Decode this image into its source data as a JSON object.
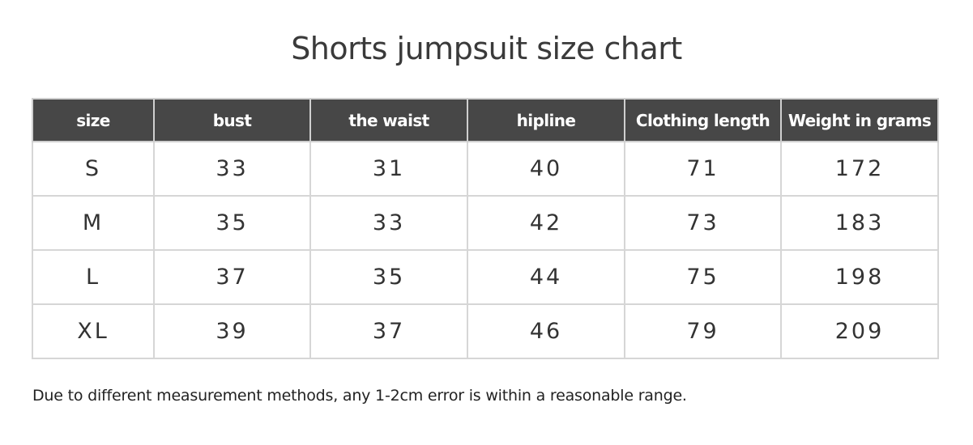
{
  "title": "Shorts jumpsuit size chart",
  "table": {
    "headers": [
      "size",
      "bust",
      "the waist",
      "hipline",
      "Clothing length",
      "Weight in grams"
    ],
    "rows": [
      [
        "S",
        "33",
        "31",
        "40",
        "71",
        "172"
      ],
      [
        "M",
        "35",
        "33",
        "42",
        "73",
        "183"
      ],
      [
        "L",
        "37",
        "35",
        "44",
        "75",
        "198"
      ],
      [
        "XL",
        "39",
        "37",
        "46",
        "79",
        "209"
      ]
    ]
  },
  "note": "Due to different measurement methods, any 1-2cm error is within a reasonable range.",
  "colors": {
    "header_bg": "#474747",
    "border": "#d6d6d6",
    "text": "#333333"
  }
}
